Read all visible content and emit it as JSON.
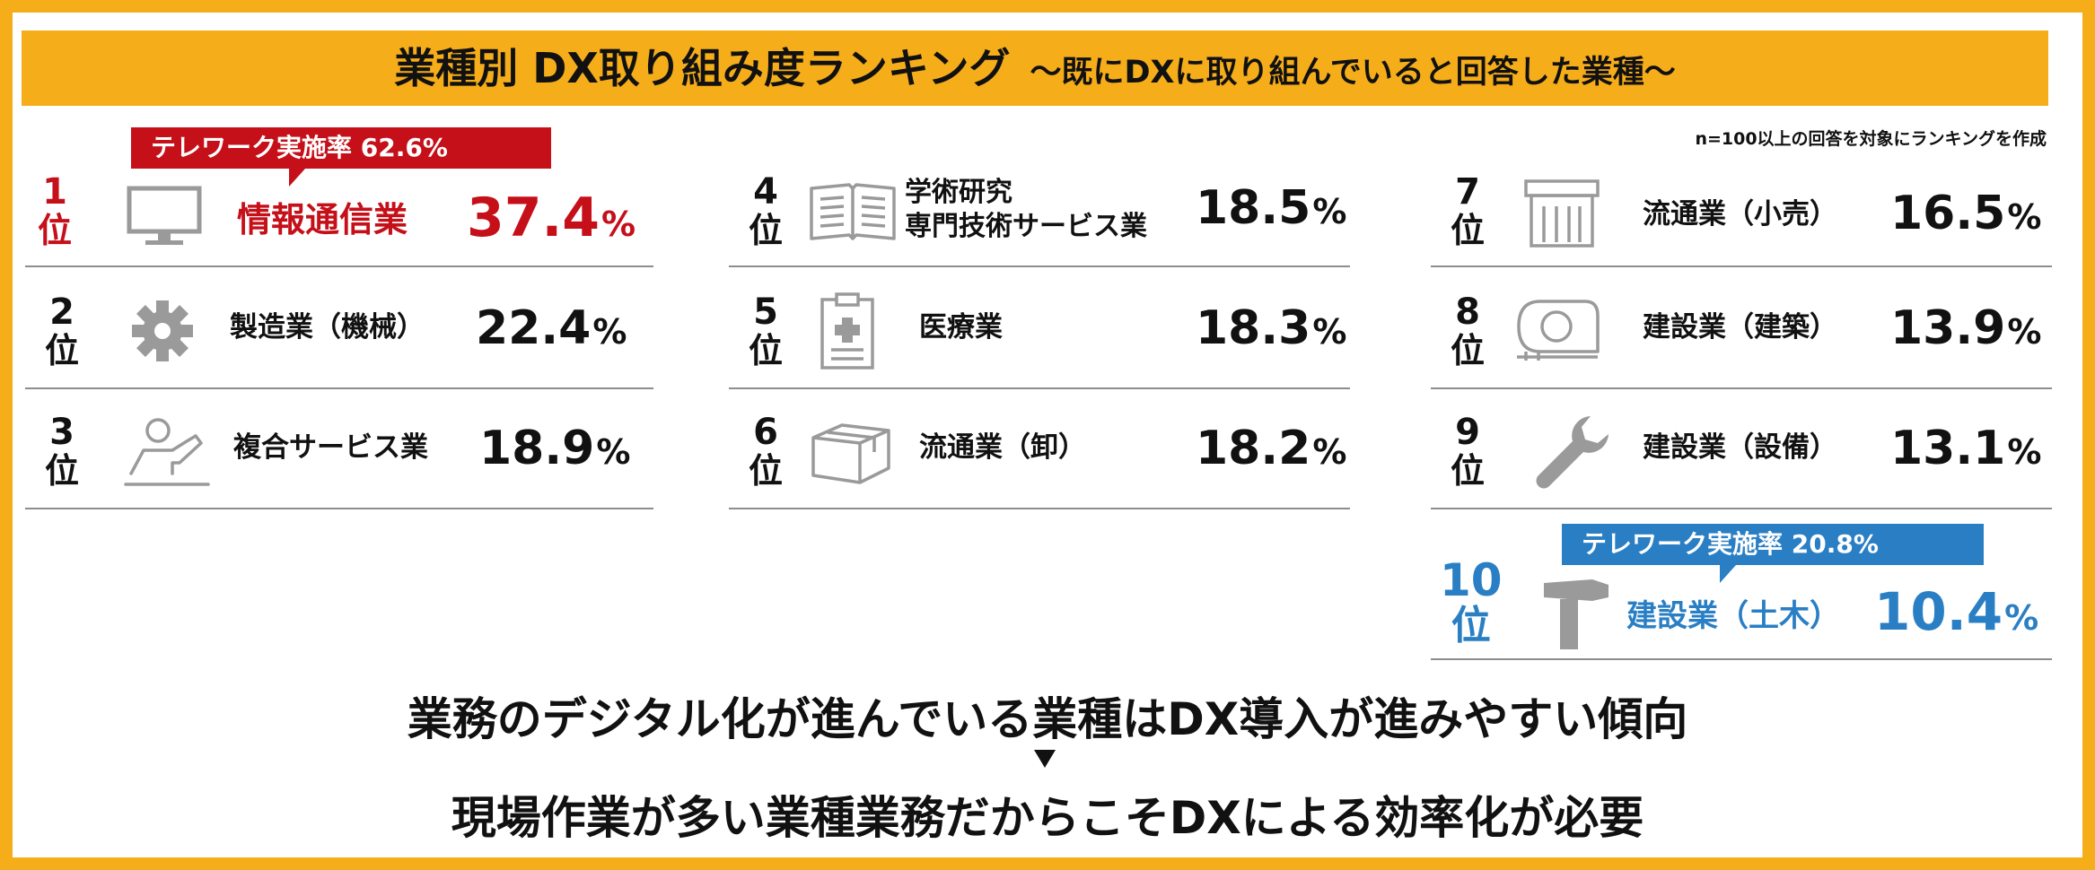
{
  "header": {
    "title": "業種別 DX取り組み度ランキング",
    "subtitle": "～既にDXに取り組んでいると回答した業種～"
  },
  "note": "n=100以上の回答を対象にランキングを作成",
  "rank_unit": "位",
  "percent_sign": "%",
  "chart_data": {
    "type": "table",
    "title": "業種別 DX取り組み度ランキング",
    "subtitle": "～既にDXに取り組んでいると回答した業種～",
    "rows": [
      {
        "rank": "1",
        "label": "情報通信業",
        "value": "37.4",
        "icon": "monitor-icon",
        "highlight": "red",
        "callout": "テレワーク実施率 62.6%"
      },
      {
        "rank": "2",
        "label": "製造業（機械）",
        "value": "22.4",
        "icon": "gear-icon"
      },
      {
        "rank": "3",
        "label": "複合サービス業",
        "value": "18.9",
        "icon": "presenter-icon"
      },
      {
        "rank": "4",
        "label": "学術研究",
        "label2": "専門技術サービス業",
        "value": "18.5",
        "icon": "book-icon"
      },
      {
        "rank": "5",
        "label": "医療業",
        "value": "18.3",
        "icon": "medical-clipboard-icon"
      },
      {
        "rank": "6",
        "label": "流通業（卸）",
        "value": "18.2",
        "icon": "box-icon"
      },
      {
        "rank": "7",
        "label": "流通業（小売）",
        "value": "16.5",
        "icon": "store-icon"
      },
      {
        "rank": "8",
        "label": "建設業（建築）",
        "value": "13.9",
        "icon": "tape-measure-icon"
      },
      {
        "rank": "9",
        "label": "建設業（設備）",
        "value": "13.1",
        "icon": "wrench-icon"
      },
      {
        "rank": "10",
        "label": "建設業（土木）",
        "value": "10.4",
        "icon": "hammer-icon",
        "highlight": "blue",
        "callout": "テレワーク実施率 20.8%"
      }
    ]
  },
  "colors": {
    "frame": "#f6ad1a",
    "rank1": "#c50f19",
    "rank10": "#2a7fc4",
    "icon_gray": "#9a9a9a"
  },
  "summary": {
    "line1": "業務のデジタル化が進んでいる業種はDX導入が進みやすい傾向",
    "line2": "現場作業が多い業種業務だからこそDXによる効率化が必要"
  }
}
